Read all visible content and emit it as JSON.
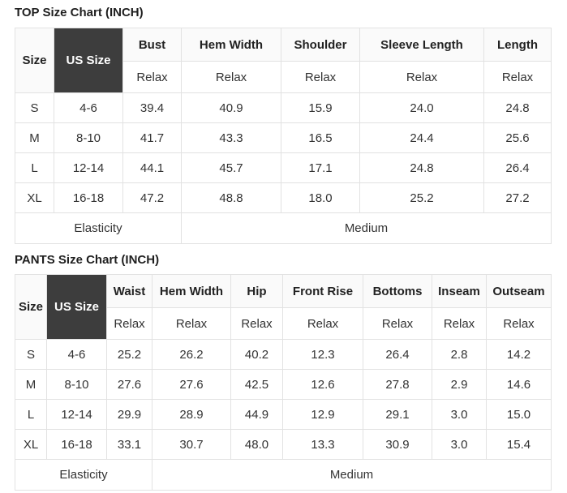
{
  "colors": {
    "page_background": "#ffffff",
    "dark_header_background": "#3d3d3d",
    "dark_header_text": "#ffffff",
    "header_background": "#fafafa",
    "border": "#e2e2e2",
    "title_text": "#1f1f1f",
    "cell_text": "#333333"
  },
  "chart_data": [
    {
      "type": "table",
      "title": "TOP Size Chart (INCH)",
      "header": {
        "size_label": "Size",
        "us_size_label": "US Size",
        "measures": [
          {
            "label": "Bust",
            "fit": "Relax"
          },
          {
            "label": "Hem Width",
            "fit": "Relax"
          },
          {
            "label": "Shoulder",
            "fit": "Relax"
          },
          {
            "label": "Sleeve Length",
            "fit": "Relax"
          },
          {
            "label": "Length",
            "fit": "Relax"
          }
        ]
      },
      "rows": [
        {
          "size": "S",
          "us_size": "4-6",
          "values": [
            "39.4",
            "40.9",
            "15.9",
            "24.0",
            "24.8"
          ]
        },
        {
          "size": "M",
          "us_size": "8-10",
          "values": [
            "41.7",
            "43.3",
            "16.5",
            "24.4",
            "25.6"
          ]
        },
        {
          "size": "L",
          "us_size": "12-14",
          "values": [
            "44.1",
            "45.7",
            "17.1",
            "24.8",
            "26.4"
          ]
        },
        {
          "size": "XL",
          "us_size": "16-18",
          "values": [
            "47.2",
            "48.8",
            "18.0",
            "25.2",
            "27.2"
          ]
        }
      ],
      "footer": {
        "label": "Elasticity",
        "value": "Medium"
      }
    },
    {
      "type": "table",
      "title": "PANTS Size Chart (INCH)",
      "header": {
        "size_label": "Size",
        "us_size_label": "US Size",
        "measures": [
          {
            "label": "Waist",
            "fit": "Relax"
          },
          {
            "label": "Hem Width",
            "fit": "Relax"
          },
          {
            "label": "Hip",
            "fit": "Relax"
          },
          {
            "label": "Front Rise",
            "fit": "Relax"
          },
          {
            "label": "Bottoms",
            "fit": "Relax"
          },
          {
            "label": "Inseam",
            "fit": "Relax"
          },
          {
            "label": "Outseam",
            "fit": "Relax"
          }
        ]
      },
      "rows": [
        {
          "size": "S",
          "us_size": "4-6",
          "values": [
            "25.2",
            "26.2",
            "40.2",
            "12.3",
            "26.4",
            "2.8",
            "14.2"
          ]
        },
        {
          "size": "M",
          "us_size": "8-10",
          "values": [
            "27.6",
            "27.6",
            "42.5",
            "12.6",
            "27.8",
            "2.9",
            "14.6"
          ]
        },
        {
          "size": "L",
          "us_size": "12-14",
          "values": [
            "29.9",
            "28.9",
            "44.9",
            "12.9",
            "29.1",
            "3.0",
            "15.0"
          ]
        },
        {
          "size": "XL",
          "us_size": "16-18",
          "values": [
            "33.1",
            "30.7",
            "48.0",
            "13.3",
            "30.9",
            "3.0",
            "15.4"
          ]
        }
      ],
      "footer": {
        "label": "Elasticity",
        "value": "Medium"
      }
    }
  ]
}
